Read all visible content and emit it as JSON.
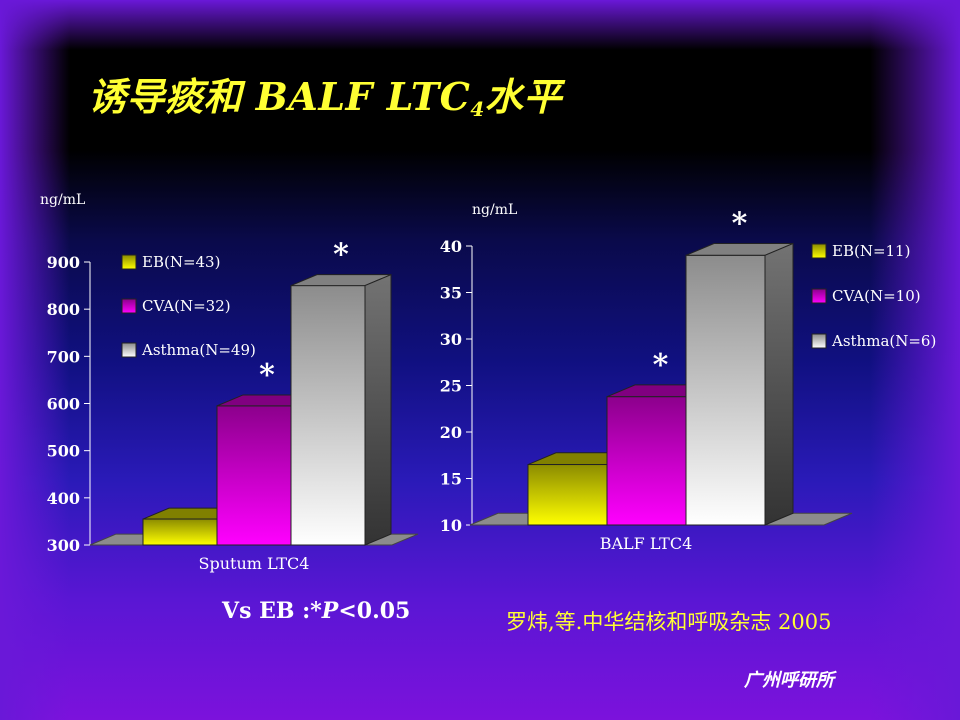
{
  "slide": {
    "title_main": "诱导痰和 BALF LTC",
    "title_sub": "4",
    "title_suffix": "水平",
    "footnote_prefix": "Vs EB :",
    "footnote_italic": "*P",
    "footnote_suffix": "<0.05",
    "citation": "罗炜,等.中华结核和呼吸杂志 2005",
    "institute": "广州呼研所"
  },
  "colors": {
    "title": "#ffff33",
    "EB": "#ffff00",
    "CVA": "#ff00ff",
    "Asthma": "#ffffff"
  },
  "chart_data": [
    {
      "type": "bar",
      "unit_label": "ng/mL",
      "xlabel": "Sputum LTC4",
      "ylim": [
        300,
        900
      ],
      "yticks": [
        "300",
        "400",
        "500",
        "600",
        "700",
        "800",
        "900"
      ],
      "series": [
        {
          "name": "EB(N=43)",
          "value": 355,
          "color": "#ffff00",
          "star": ""
        },
        {
          "name": "CVA(N=32)",
          "value": 595,
          "color": "#ff00ff",
          "star": "*"
        },
        {
          "name": "Asthma(N=49)",
          "value": 850,
          "color": "#ffffff",
          "star": "*"
        }
      ],
      "legend_position": "top-left"
    },
    {
      "type": "bar",
      "unit_label": "ng/mL",
      "xlabel": "BALF LTC4",
      "ylim": [
        10,
        40
      ],
      "yticks": [
        "10",
        "15",
        "20",
        "25",
        "30",
        "35",
        "40"
      ],
      "series": [
        {
          "name": "EB(N=11)",
          "value": 16.5,
          "color": "#ffff00",
          "star": ""
        },
        {
          "name": "CVA(N=10)",
          "value": 23.8,
          "color": "#ff00ff",
          "star": "*"
        },
        {
          "name": "Asthma(N=6)",
          "value": 39,
          "color": "#ffffff",
          "star": "*"
        }
      ],
      "legend_position": "right"
    }
  ]
}
